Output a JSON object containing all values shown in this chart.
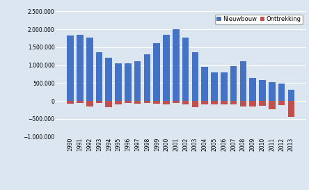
{
  "years": [
    "1990",
    "1991",
    "1992",
    "1993",
    "1994",
    "1995",
    "1996",
    "1997",
    "1998",
    "1999",
    "2000",
    "2001",
    "2002",
    "2003",
    "2004",
    "2005",
    "2006",
    "2007",
    "2008",
    "2009",
    "2010",
    "2011",
    "2012",
    "2013"
  ],
  "nieuwbouw": [
    1820000,
    1850000,
    1760000,
    1370000,
    1200000,
    1060000,
    1060000,
    1110000,
    1310000,
    1620000,
    1840000,
    2010000,
    1760000,
    1370000,
    960000,
    790000,
    790000,
    970000,
    1100000,
    640000,
    580000,
    520000,
    490000,
    310000
  ],
  "onttrekking": [
    -80000,
    -60000,
    -160000,
    -50000,
    -170000,
    -90000,
    -50000,
    -80000,
    -60000,
    -80000,
    -90000,
    -60000,
    -100000,
    -170000,
    -90000,
    -100000,
    -90000,
    -90000,
    -160000,
    -150000,
    -140000,
    -230000,
    -120000,
    -450000
  ],
  "bar_color_nieuw": "#4472C4",
  "bar_color_ont": "#C0504D",
  "legend_labels": [
    "Nieuwbouw",
    "Onttrekking"
  ],
  "ylim": [
    -1000000,
    2500000
  ],
  "yticks": [
    -1000000,
    -500000,
    0,
    500000,
    1000000,
    1500000,
    2000000,
    2500000
  ],
  "background_color": "#DCE6F1",
  "grid_color": "#ffffff",
  "figsize": [
    4.44,
    2.73
  ],
  "dpi": 100
}
